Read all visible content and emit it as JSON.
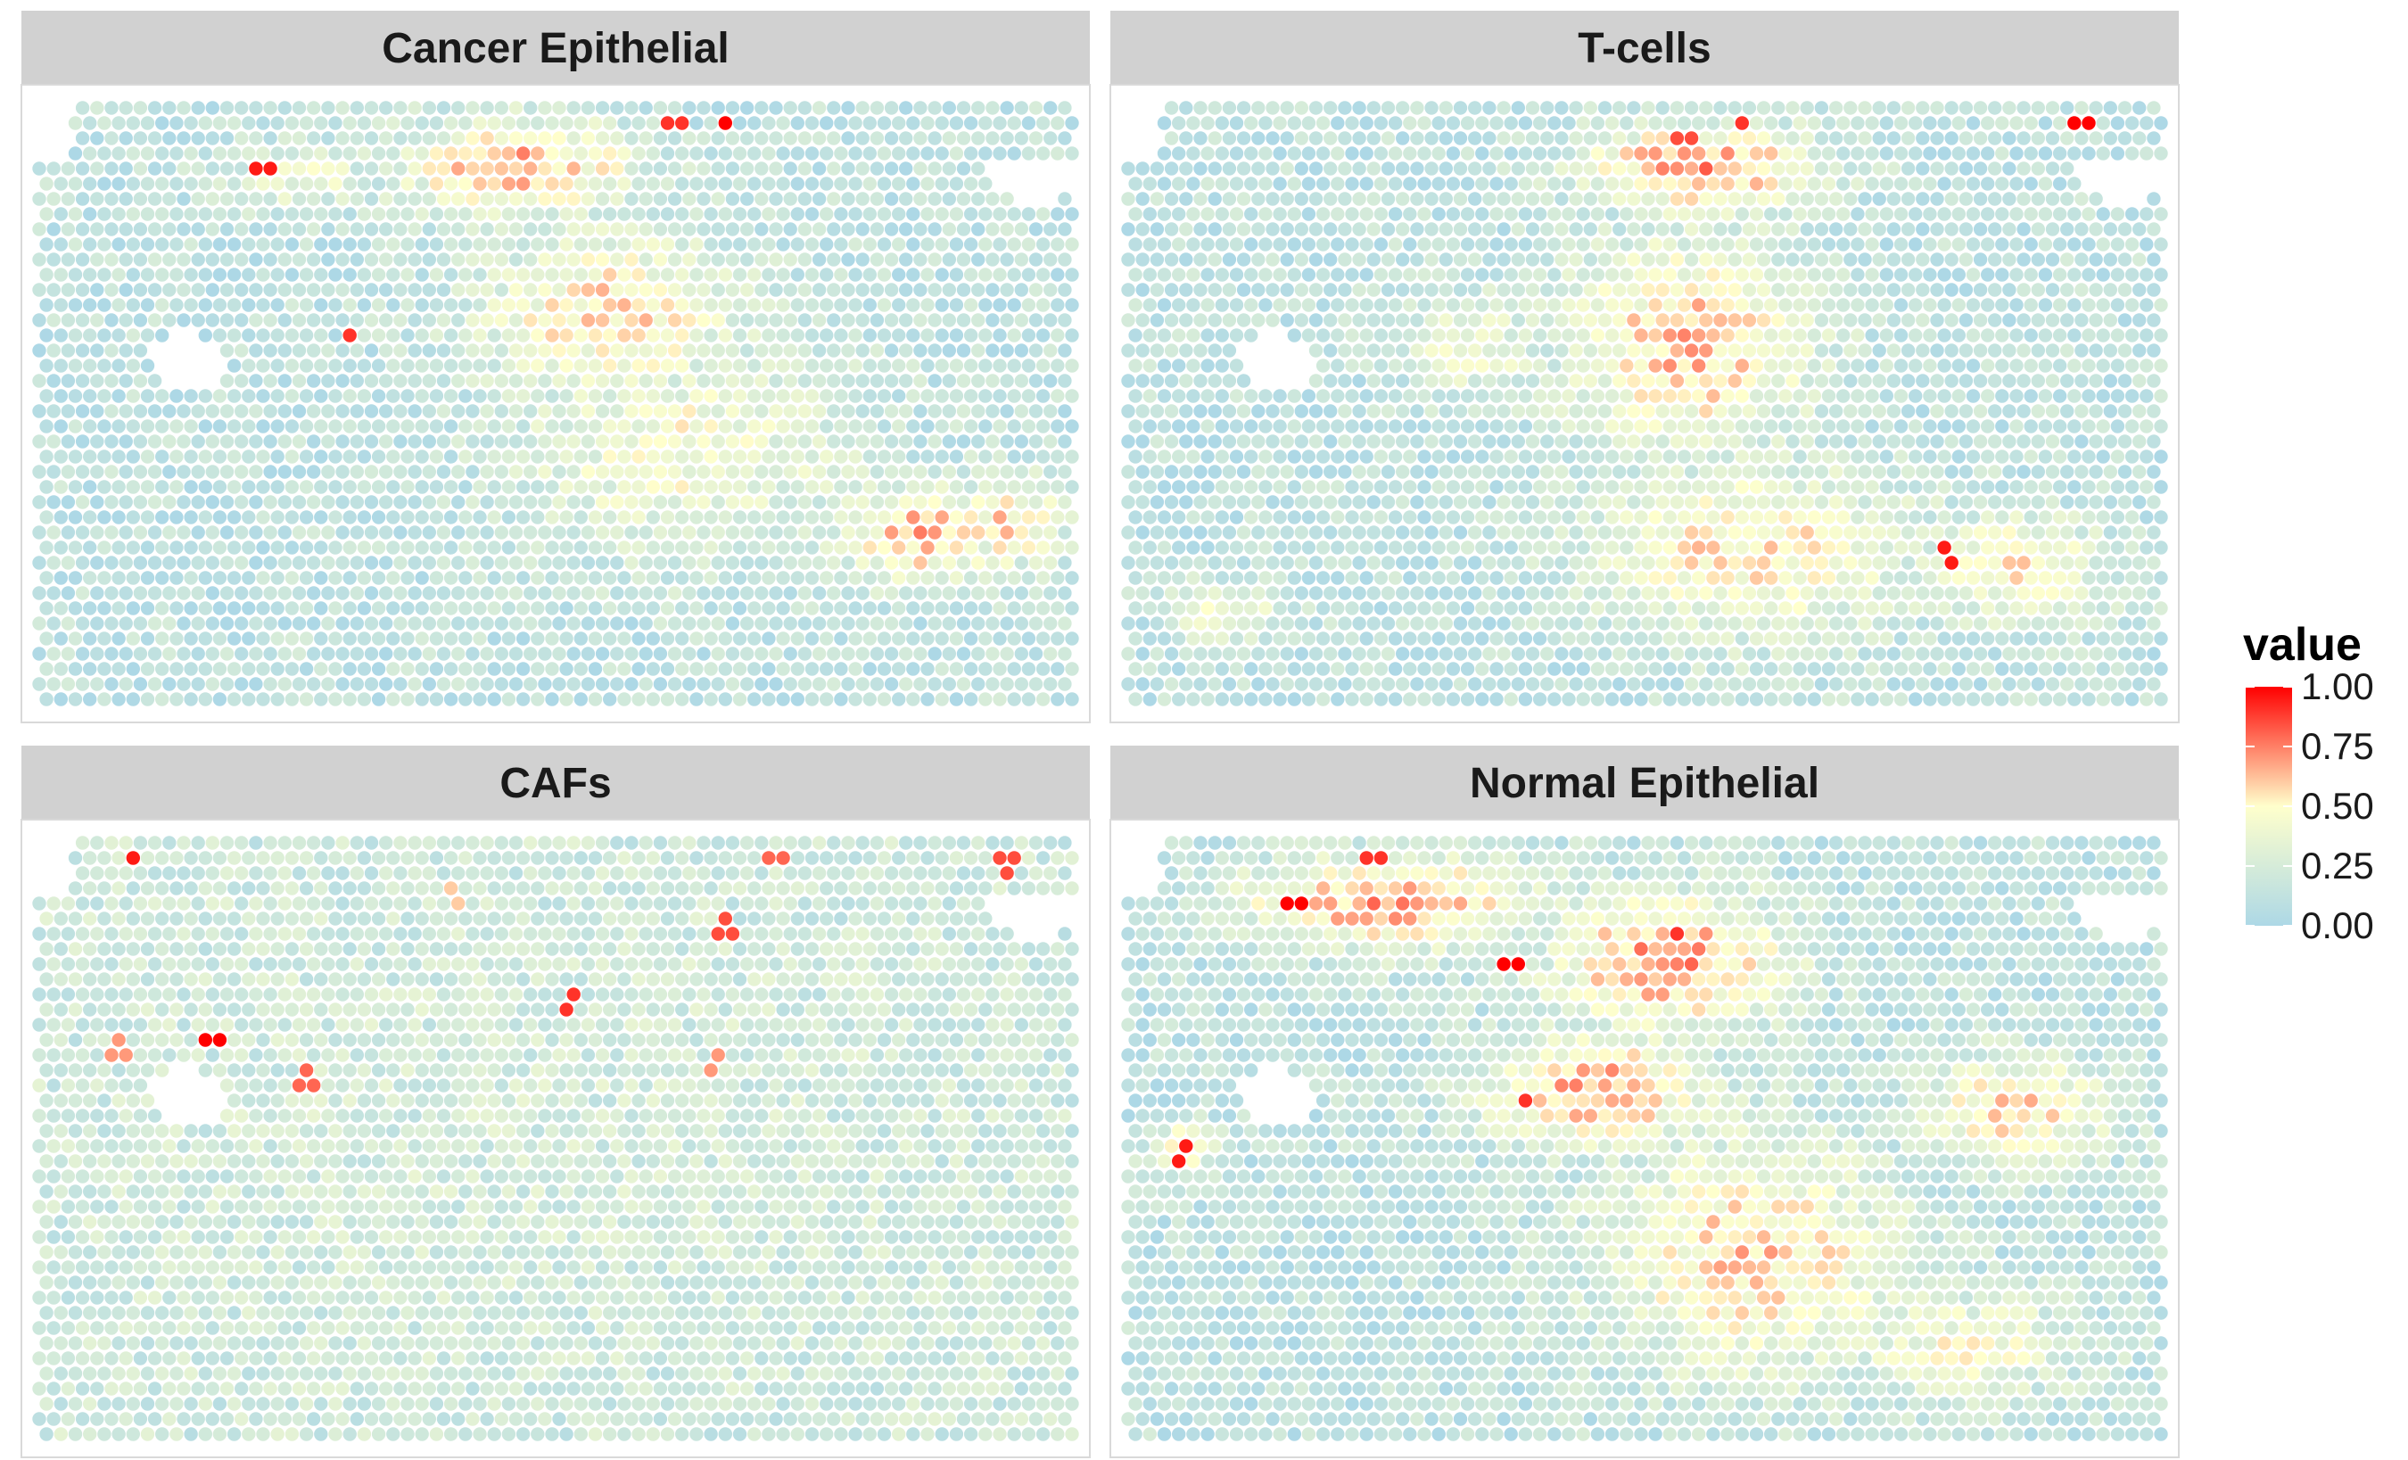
{
  "chart_data": {
    "type": "heatmap",
    "subtype": "spatial-spot-facet",
    "facets": [
      {
        "title": "Cancer Epithelial",
        "grid": {
          "cols": 72,
          "rows": 40
        },
        "background": 0.12,
        "hotspots": [
          {
            "cx": 0.46,
            "cy": 0.1,
            "rx": 0.14,
            "ry": 0.1,
            "value": 0.68
          },
          {
            "cx": 0.55,
            "cy": 0.35,
            "rx": 0.16,
            "ry": 0.18,
            "value": 0.55
          },
          {
            "cx": 0.62,
            "cy": 0.58,
            "rx": 0.2,
            "ry": 0.22,
            "value": 0.45
          },
          {
            "cx": 0.85,
            "cy": 0.72,
            "rx": 0.1,
            "ry": 0.1,
            "value": 0.65
          },
          {
            "cx": 0.25,
            "cy": 0.12,
            "rx": 0.1,
            "ry": 0.06,
            "value": 0.4
          },
          {
            "cx": 0.93,
            "cy": 0.7,
            "rx": 0.07,
            "ry": 0.1,
            "value": 0.55
          }
        ],
        "peaks": [
          {
            "u": 0.22,
            "v": 0.1,
            "value": 0.95
          },
          {
            "u": 0.66,
            "v": 0.02,
            "value": 1.0
          },
          {
            "u": 0.61,
            "v": 0.02,
            "value": 0.9
          },
          {
            "u": 0.3,
            "v": 0.38,
            "value": 0.9
          }
        ],
        "holes": [
          {
            "cx": 0.14,
            "cy": 0.43,
            "rx": 0.035,
            "ry": 0.05
          },
          {
            "cx": 0.955,
            "cy": 0.12,
            "rx": 0.045,
            "ry": 0.04
          }
        ]
      },
      {
        "title": "T-cells",
        "grid": {
          "cols": 72,
          "rows": 40
        },
        "background": 0.12,
        "hotspots": [
          {
            "cx": 0.55,
            "cy": 0.1,
            "rx": 0.14,
            "ry": 0.09,
            "value": 0.72
          },
          {
            "cx": 0.54,
            "cy": 0.4,
            "rx": 0.15,
            "ry": 0.22,
            "value": 0.62
          },
          {
            "cx": 0.6,
            "cy": 0.75,
            "rx": 0.2,
            "ry": 0.18,
            "value": 0.55
          },
          {
            "cx": 0.85,
            "cy": 0.78,
            "rx": 0.12,
            "ry": 0.12,
            "value": 0.5
          },
          {
            "cx": 0.33,
            "cy": 0.4,
            "rx": 0.08,
            "ry": 0.1,
            "value": 0.45
          },
          {
            "cx": 0.1,
            "cy": 0.85,
            "rx": 0.07,
            "ry": 0.06,
            "value": 0.45
          }
        ],
        "peaks": [
          {
            "u": 0.92,
            "v": 0.02,
            "value": 1.0
          },
          {
            "u": 0.79,
            "v": 0.76,
            "value": 0.95
          },
          {
            "u": 0.59,
            "v": 0.03,
            "value": 0.9
          },
          {
            "u": 0.53,
            "v": 0.05,
            "value": 0.85
          }
        ],
        "holes": [
          {
            "cx": 0.14,
            "cy": 0.43,
            "rx": 0.035,
            "ry": 0.05
          },
          {
            "cx": 0.955,
            "cy": 0.12,
            "rx": 0.045,
            "ry": 0.04
          }
        ]
      },
      {
        "title": "CAFs",
        "grid": {
          "cols": 72,
          "rows": 40
        },
        "background": 0.2,
        "hotspots": [
          {
            "cx": 0.5,
            "cy": 0.5,
            "rx": 0.5,
            "ry": 0.5,
            "value": 0.24
          }
        ],
        "peaks": [
          {
            "u": 0.09,
            "v": 0.02,
            "value": 0.95
          },
          {
            "u": 0.17,
            "v": 0.33,
            "value": 1.0
          },
          {
            "u": 0.51,
            "v": 0.27,
            "value": 0.9
          },
          {
            "u": 0.66,
            "v": 0.14,
            "value": 0.85
          },
          {
            "u": 0.93,
            "v": 0.04,
            "value": 0.85
          },
          {
            "u": 0.71,
            "v": 0.02,
            "value": 0.8
          },
          {
            "u": 0.26,
            "v": 0.4,
            "value": 0.8
          },
          {
            "u": 0.08,
            "v": 0.35,
            "value": 0.7
          },
          {
            "u": 0.65,
            "v": 0.37,
            "value": 0.7
          },
          {
            "u": 0.4,
            "v": 0.09,
            "value": 0.6
          }
        ],
        "holes": [
          {
            "cx": 0.14,
            "cy": 0.43,
            "rx": 0.035,
            "ry": 0.05
          },
          {
            "cx": 0.955,
            "cy": 0.12,
            "rx": 0.045,
            "ry": 0.04
          }
        ]
      },
      {
        "title": "Normal Epithelial",
        "grid": {
          "cols": 72,
          "rows": 40
        },
        "background": 0.12,
        "hotspots": [
          {
            "cx": 0.25,
            "cy": 0.1,
            "rx": 0.18,
            "ry": 0.1,
            "value": 0.68
          },
          {
            "cx": 0.52,
            "cy": 0.2,
            "rx": 0.14,
            "ry": 0.14,
            "value": 0.72
          },
          {
            "cx": 0.45,
            "cy": 0.42,
            "rx": 0.14,
            "ry": 0.12,
            "value": 0.68
          },
          {
            "cx": 0.6,
            "cy": 0.7,
            "rx": 0.18,
            "ry": 0.25,
            "value": 0.58
          },
          {
            "cx": 0.85,
            "cy": 0.45,
            "rx": 0.12,
            "ry": 0.12,
            "value": 0.55
          },
          {
            "cx": 0.8,
            "cy": 0.85,
            "rx": 0.15,
            "ry": 0.12,
            "value": 0.45
          },
          {
            "cx": 0.05,
            "cy": 0.52,
            "rx": 0.04,
            "ry": 0.05,
            "value": 0.6
          }
        ],
        "peaks": [
          {
            "u": 0.16,
            "v": 0.1,
            "value": 1.0
          },
          {
            "u": 0.37,
            "v": 0.2,
            "value": 1.0
          },
          {
            "u": 0.05,
            "v": 0.53,
            "value": 0.95
          },
          {
            "u": 0.24,
            "v": 0.02,
            "value": 0.9
          },
          {
            "u": 0.53,
            "v": 0.16,
            "value": 0.9
          },
          {
            "u": 0.38,
            "v": 0.44,
            "value": 0.9
          }
        ],
        "holes": [
          {
            "cx": 0.14,
            "cy": 0.43,
            "rx": 0.035,
            "ry": 0.05
          },
          {
            "cx": 0.955,
            "cy": 0.12,
            "rx": 0.045,
            "ry": 0.04
          }
        ]
      }
    ],
    "colorscale": {
      "stops": [
        {
          "value": 0.0,
          "color": "#add8e6"
        },
        {
          "value": 0.5,
          "color": "#ffffcc"
        },
        {
          "value": 1.0,
          "color": "#ff0000"
        }
      ]
    },
    "legend": {
      "title": "value",
      "ticks": [
        "0.00",
        "0.25",
        "0.50",
        "0.75",
        "1.00"
      ],
      "placement": "right"
    },
    "strip_color": "#d1d1d1"
  }
}
